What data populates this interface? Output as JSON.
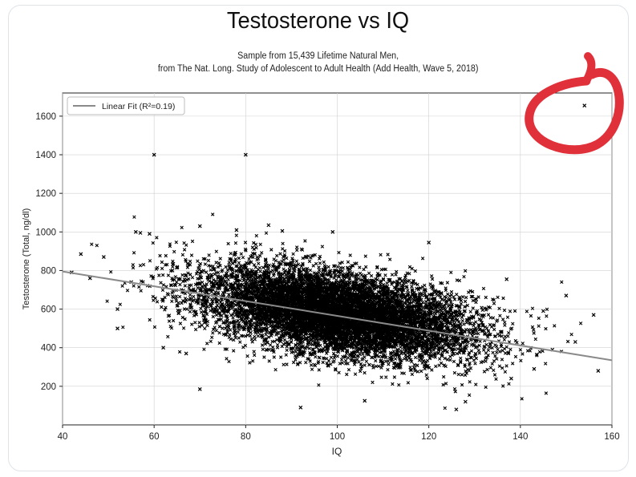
{
  "chart_data": {
    "type": "scatter",
    "title": "Testosterone vs IQ",
    "subtitle_lines": [
      "Sample from 15,439 Lifetime Natural Men,",
      "from The Nat. Long. Study of Adolescent to Adult Health (Add Health, Wave 5, 2018)"
    ],
    "xlabel": "IQ",
    "ylabel": "Testosterone (Total, ng/dl)",
    "xlim": [
      40,
      160
    ],
    "ylim": [
      0,
      1720
    ],
    "xticks": [
      40,
      60,
      80,
      100,
      120,
      140,
      160
    ],
    "yticks": [
      200,
      400,
      600,
      800,
      1000,
      1200,
      1400,
      1600
    ],
    "grid": true,
    "legend": {
      "placement": "top-left",
      "label": "Linear Fit (R²=0.19)"
    },
    "fit_line": {
      "x": [
        40,
        160
      ],
      "y": [
        795,
        335
      ]
    },
    "marker": "x",
    "colors": {
      "points": "#000000",
      "fit": "#8a8a8a",
      "annotation": "#e0303a"
    },
    "annotation": {
      "shape": "circle",
      "target": {
        "x": 154,
        "y": 1655
      }
    },
    "series": [
      {
        "cluster": {
          "count": 15439,
          "mean_x": 100,
          "sd_x": 15,
          "mean_y": 580,
          "sd_y": 120,
          "correlation": -0.44
        },
        "outliers": [
          {
            "x": 154,
            "y": 1655
          },
          {
            "x": 60,
            "y": 1400
          },
          {
            "x": 80,
            "y": 1400
          },
          {
            "x": 44,
            "y": 885
          },
          {
            "x": 42,
            "y": 790
          },
          {
            "x": 46,
            "y": 760
          },
          {
            "x": 49,
            "y": 870
          },
          {
            "x": 52,
            "y": 600
          },
          {
            "x": 52,
            "y": 500
          },
          {
            "x": 55,
            "y": 740
          },
          {
            "x": 57,
            "y": 995
          },
          {
            "x": 59,
            "y": 990
          },
          {
            "x": 56,
            "y": 1000
          },
          {
            "x": 70,
            "y": 1030
          },
          {
            "x": 85,
            "y": 1035
          },
          {
            "x": 78,
            "y": 1010
          },
          {
            "x": 88,
            "y": 1005
          },
          {
            "x": 99,
            "y": 1000
          },
          {
            "x": 120,
            "y": 945
          },
          {
            "x": 150,
            "y": 670
          },
          {
            "x": 152,
            "y": 430
          },
          {
            "x": 156,
            "y": 570
          },
          {
            "x": 157,
            "y": 280
          },
          {
            "x": 145,
            "y": 590
          },
          {
            "x": 137,
            "y": 755
          },
          {
            "x": 147,
            "y": 390
          },
          {
            "x": 143,
            "y": 290
          },
          {
            "x": 138,
            "y": 240
          },
          {
            "x": 70,
            "y": 185
          },
          {
            "x": 92,
            "y": 90
          },
          {
            "x": 126,
            "y": 80
          },
          {
            "x": 128,
            "y": 120
          },
          {
            "x": 106,
            "y": 125
          },
          {
            "x": 62,
            "y": 400
          },
          {
            "x": 67,
            "y": 370
          },
          {
            "x": 64,
            "y": 800
          }
        ]
      }
    ]
  }
}
